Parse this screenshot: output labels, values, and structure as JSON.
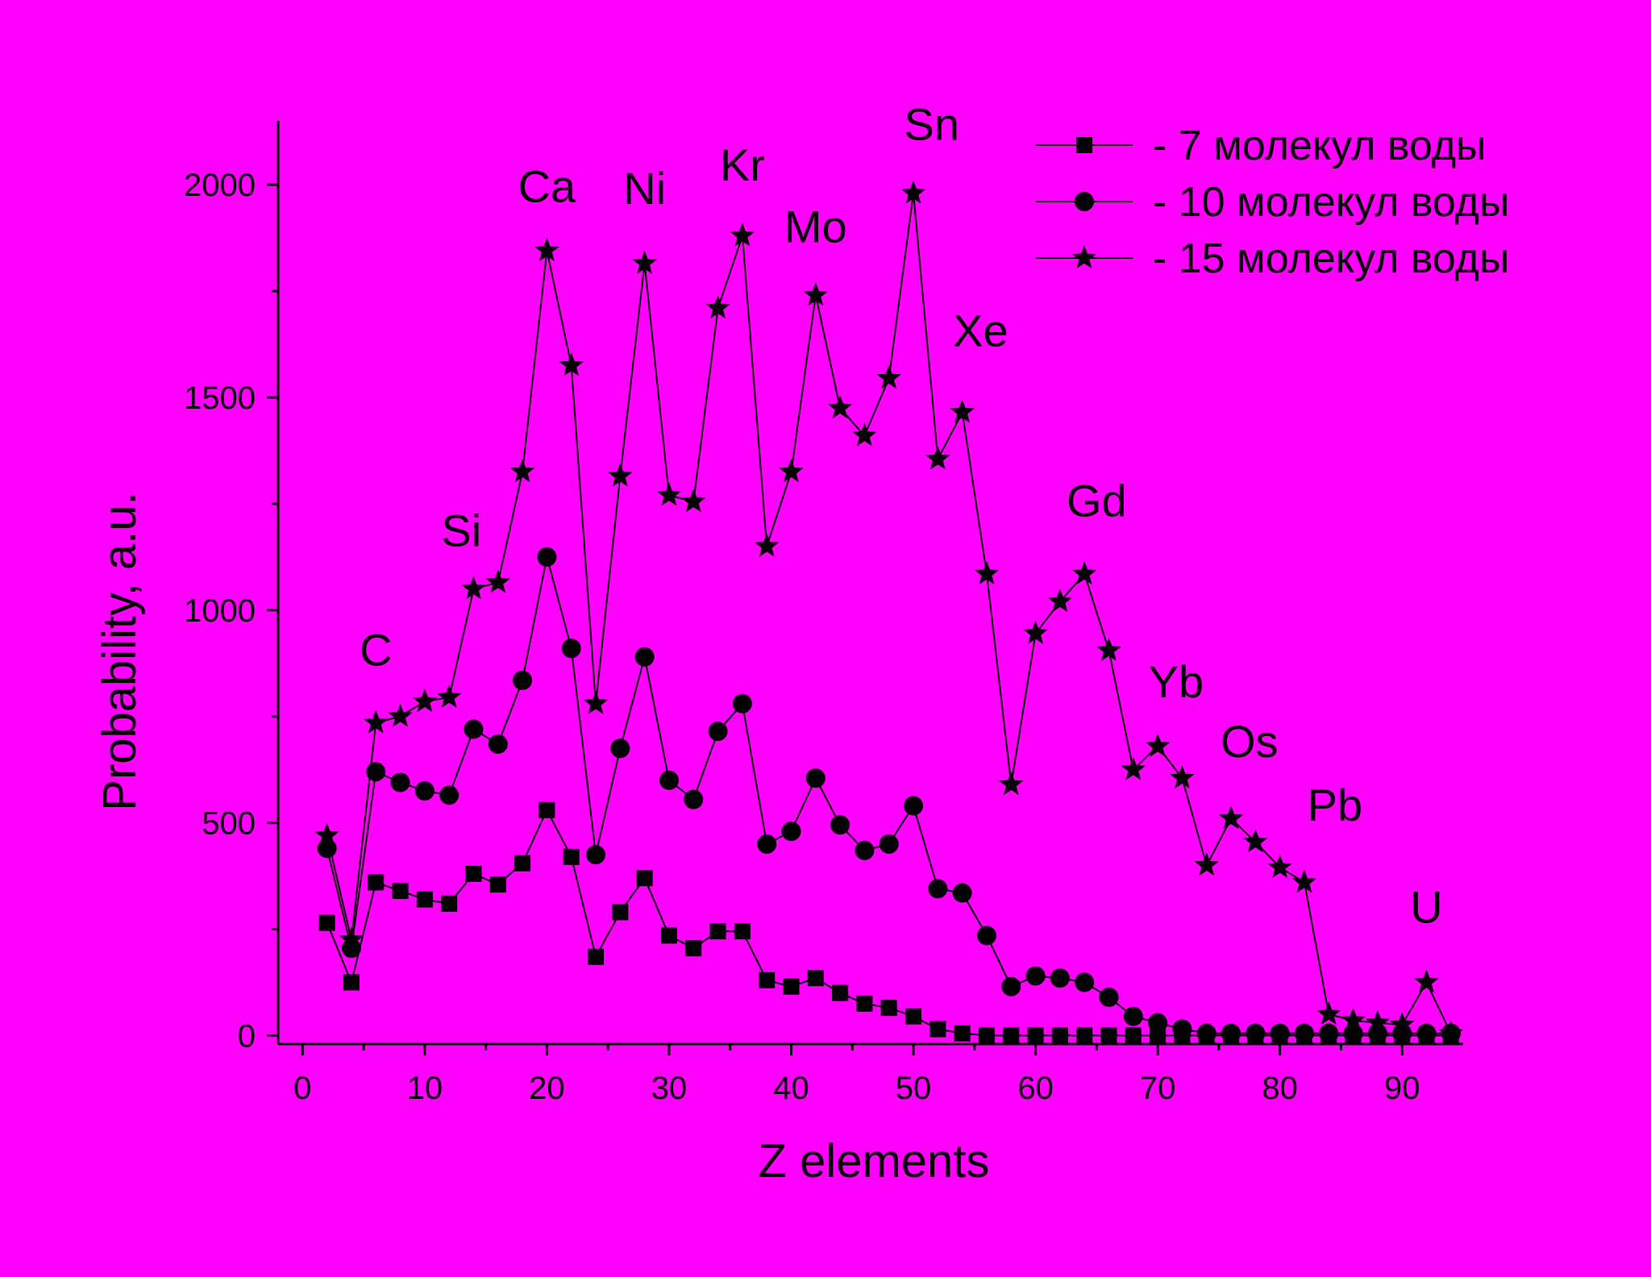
{
  "chart_data": {
    "type": "line",
    "xlabel": "Z  elements",
    "ylabel": "Probability,  a.u.",
    "xlim": [
      -2,
      95
    ],
    "ylim": [
      -20,
      2150
    ],
    "xticks": [
      0,
      10,
      20,
      30,
      40,
      50,
      60,
      70,
      80,
      90
    ],
    "yticks": [
      0,
      500,
      1000,
      1500,
      2000
    ],
    "grid": false,
    "legend_position": "top-right",
    "background_color": "#ff00ff",
    "line_color": "#000000",
    "series": [
      {
        "name": "-  7  молекул воды",
        "marker": "square",
        "x": [
          2,
          4,
          6,
          8,
          10,
          12,
          14,
          16,
          18,
          20,
          22,
          24,
          26,
          28,
          30,
          32,
          34,
          36,
          38,
          40,
          42,
          44,
          46,
          48,
          50,
          52,
          54,
          56,
          58,
          60,
          62,
          64,
          66,
          68,
          70,
          72,
          74,
          76,
          78,
          80,
          82,
          84,
          86,
          88,
          90,
          92,
          94
        ],
        "y": [
          265,
          125,
          360,
          340,
          320,
          310,
          380,
          355,
          405,
          530,
          420,
          185,
          290,
          370,
          235,
          205,
          245,
          245,
          130,
          115,
          135,
          100,
          75,
          65,
          45,
          15,
          5,
          0,
          0,
          0,
          0,
          0,
          0,
          0,
          0,
          0,
          0,
          0,
          0,
          0,
          0,
          0,
          0,
          0,
          0,
          0,
          0
        ]
      },
      {
        "name": "- 10 молекул воды",
        "marker": "circle",
        "x": [
          2,
          4,
          6,
          8,
          10,
          12,
          14,
          16,
          18,
          20,
          22,
          24,
          26,
          28,
          30,
          32,
          34,
          36,
          38,
          40,
          42,
          44,
          46,
          48,
          50,
          52,
          54,
          56,
          58,
          60,
          62,
          64,
          66,
          68,
          70,
          72,
          74,
          76,
          78,
          80,
          82,
          84,
          86,
          88,
          90,
          92,
          94
        ],
        "y": [
          440,
          205,
          620,
          595,
          575,
          565,
          720,
          685,
          835,
          1125,
          910,
          425,
          675,
          890,
          600,
          555,
          715,
          780,
          450,
          480,
          605,
          495,
          435,
          450,
          540,
          345,
          335,
          235,
          115,
          140,
          135,
          125,
          90,
          45,
          30,
          15,
          5,
          5,
          5,
          5,
          5,
          5,
          5,
          5,
          5,
          5,
          5
        ]
      },
      {
        "name": "- 15 молекул воды",
        "marker": "star",
        "x": [
          2,
          4,
          6,
          8,
          10,
          12,
          14,
          16,
          18,
          20,
          22,
          24,
          26,
          28,
          30,
          32,
          34,
          36,
          38,
          40,
          42,
          44,
          46,
          48,
          50,
          52,
          54,
          56,
          58,
          60,
          62,
          64,
          66,
          68,
          70,
          72,
          74,
          76,
          78,
          80,
          82,
          84,
          86,
          88,
          90,
          92,
          94
        ],
        "y": [
          470,
          225,
          735,
          750,
          785,
          795,
          1050,
          1065,
          1325,
          1845,
          1575,
          780,
          1315,
          1815,
          1270,
          1255,
          1710,
          1880,
          1150,
          1325,
          1740,
          1475,
          1410,
          1545,
          1980,
          1355,
          1465,
          1085,
          590,
          945,
          1020,
          1085,
          905,
          625,
          680,
          605,
          400,
          510,
          455,
          395,
          360,
          50,
          35,
          30,
          25,
          125,
          5
        ]
      }
    ],
    "annotations": [
      {
        "text": "C",
        "x": 6,
        "y": 870
      },
      {
        "text": "Si",
        "x": 13,
        "y": 1150
      },
      {
        "text": "Ca",
        "x": 20,
        "y": 1960
      },
      {
        "text": "Ni",
        "x": 28,
        "y": 1955
      },
      {
        "text": "Kr",
        "x": 36,
        "y": 2010
      },
      {
        "text": "Mo",
        "x": 42,
        "y": 1865
      },
      {
        "text": "Sn",
        "x": 51.5,
        "y": 2105
      },
      {
        "text": "Xe",
        "x": 55.5,
        "y": 1620
      },
      {
        "text": "Gd",
        "x": 65,
        "y": 1220
      },
      {
        "text": "Yb",
        "x": 71.5,
        "y": 795
      },
      {
        "text": "Os",
        "x": 77.5,
        "y": 655
      },
      {
        "text": "Pb",
        "x": 84.5,
        "y": 505
      },
      {
        "text": "U",
        "x": 92,
        "y": 265
      }
    ]
  }
}
